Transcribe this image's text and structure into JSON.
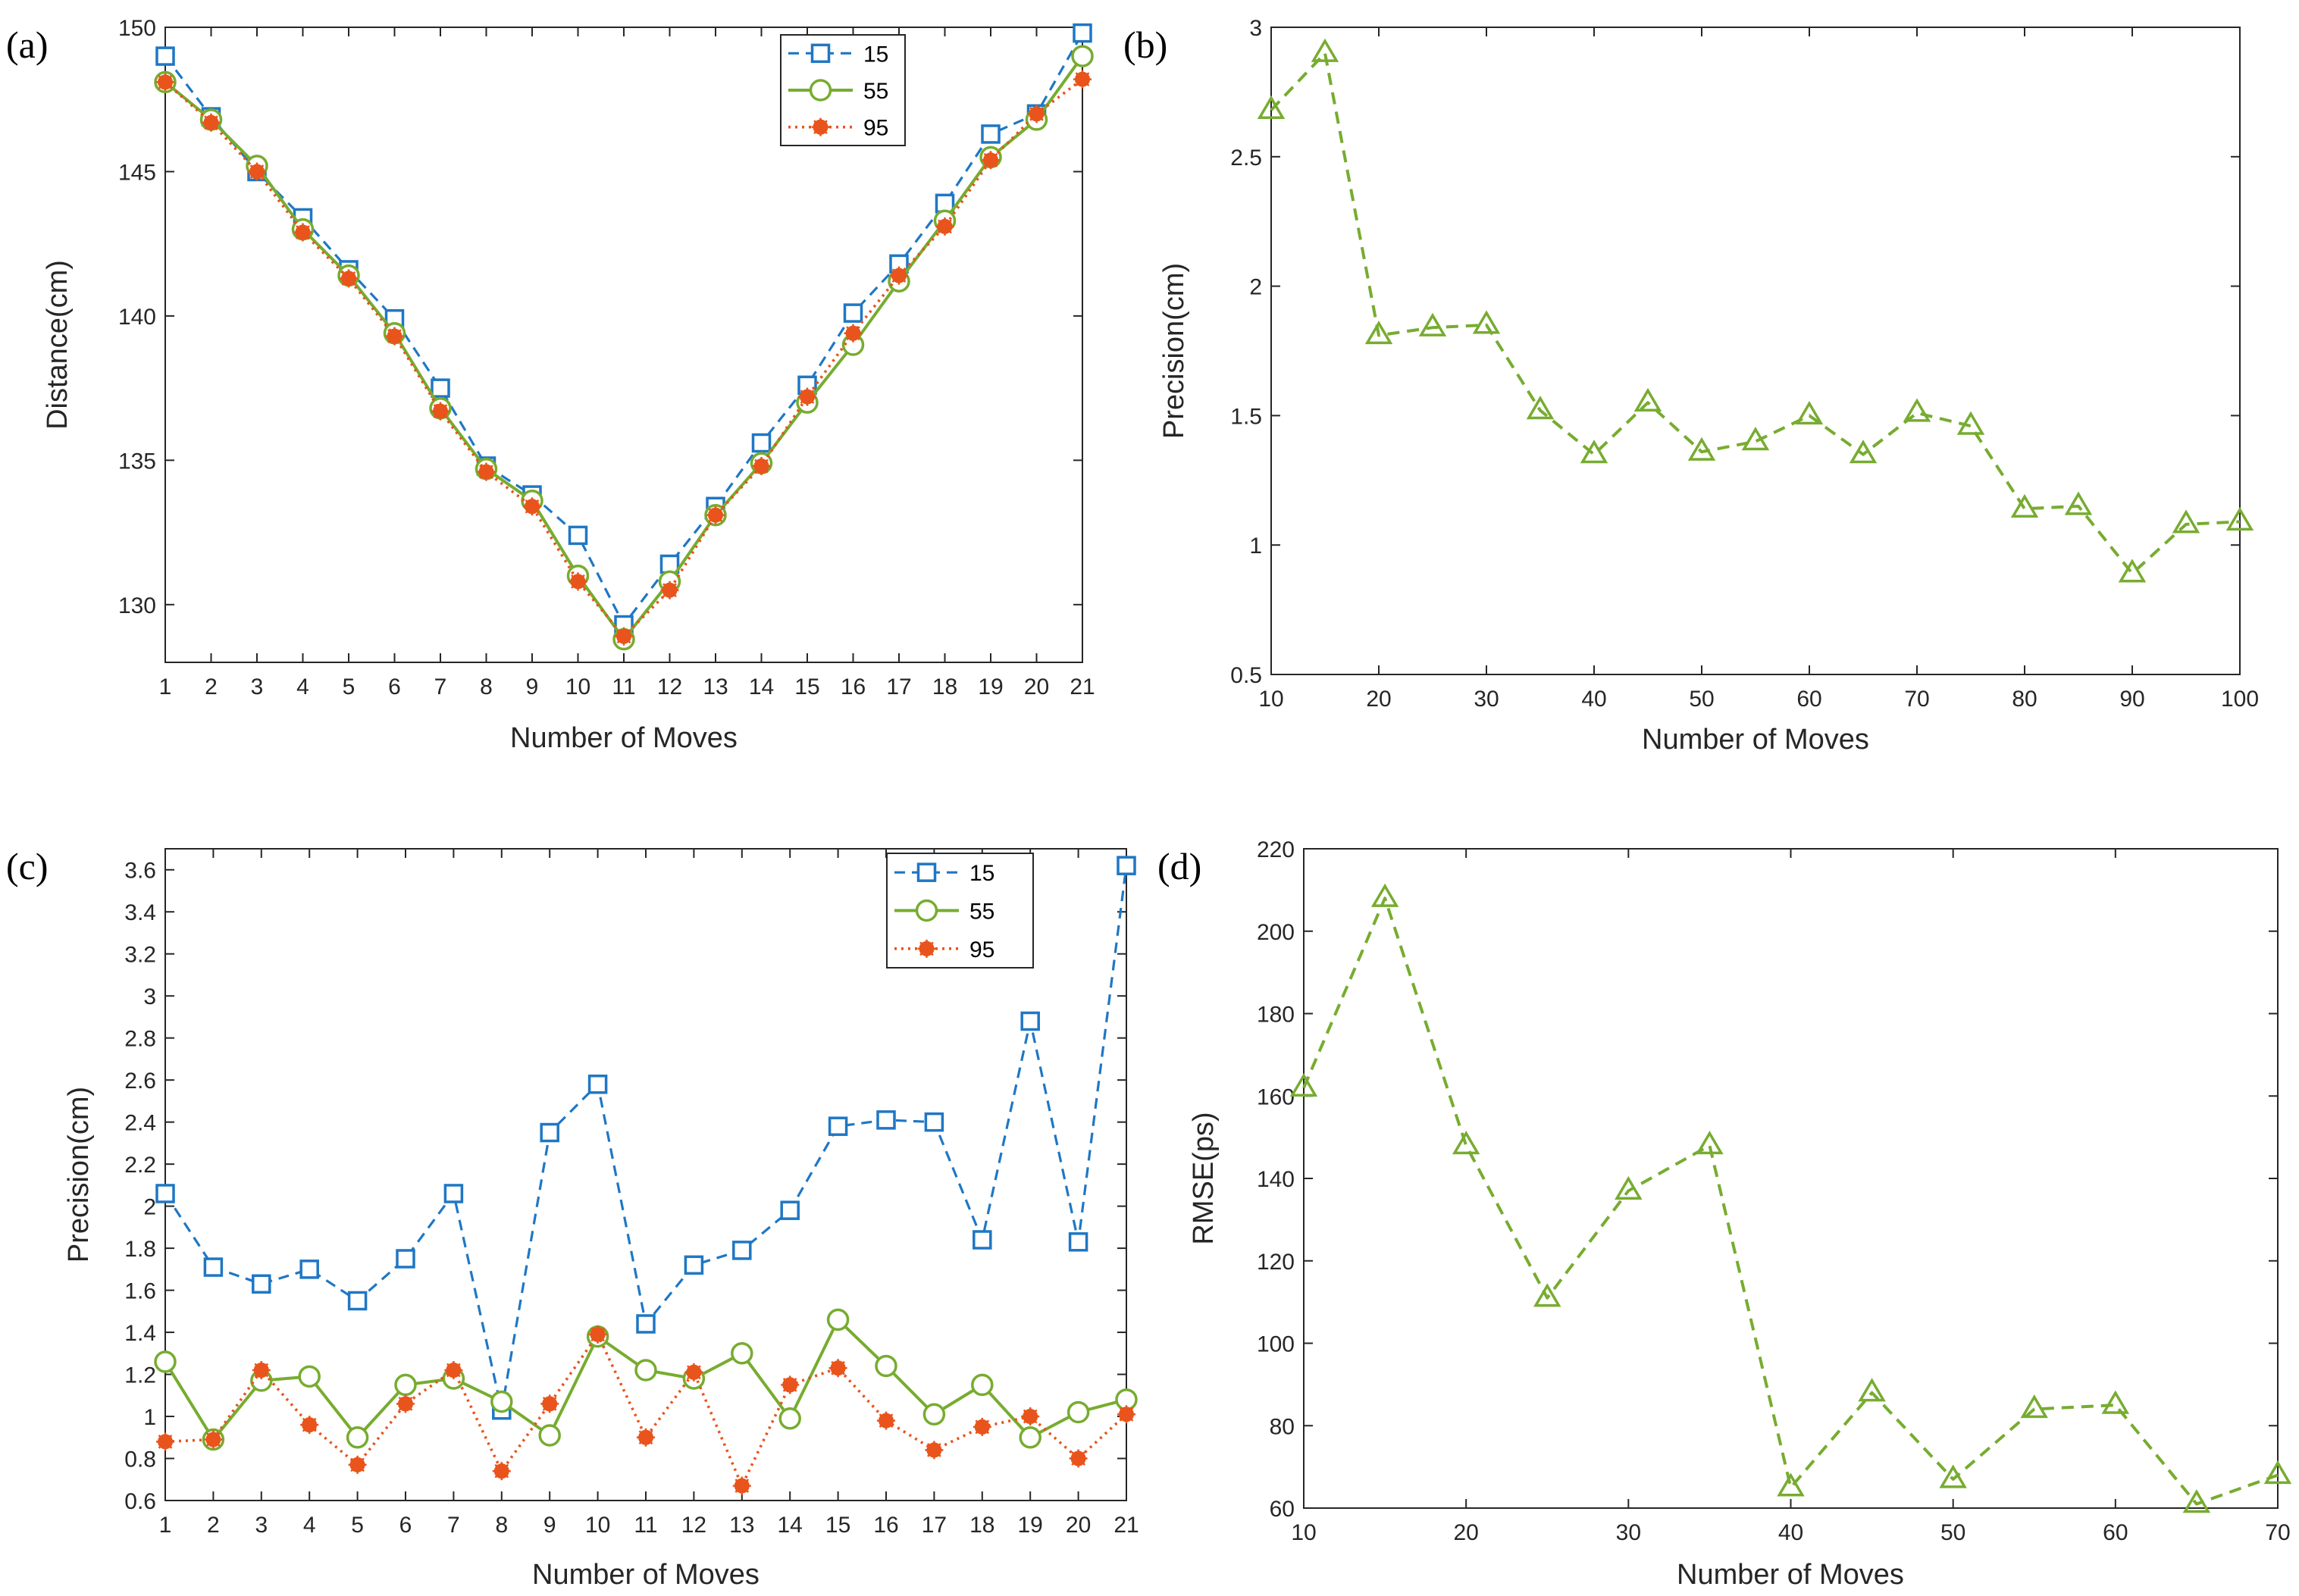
{
  "chart_data": [
    {
      "panel_label": "(a)",
      "type": "line",
      "xlabel": "Number of Moves",
      "ylabel": "Distance(cm)",
      "xlim": [
        1,
        21
      ],
      "ylim": [
        128,
        150
      ],
      "xticks": [
        1,
        2,
        3,
        4,
        5,
        6,
        7,
        8,
        9,
        10,
        11,
        12,
        13,
        14,
        15,
        16,
        17,
        18,
        19,
        20,
        21
      ],
      "yticks": [
        130,
        135,
        140,
        145,
        150
      ],
      "legend": "top-right",
      "series": [
        {
          "name": "15",
          "style": "blue-dash-square",
          "x": [
            1,
            2,
            3,
            4,
            5,
            6,
            7,
            8,
            9,
            10,
            11,
            12,
            13,
            14,
            15,
            16,
            17,
            18,
            19,
            20,
            21
          ],
          "values": [
            149.0,
            146.9,
            145.0,
            143.4,
            141.6,
            139.9,
            137.5,
            134.8,
            133.8,
            132.4,
            129.3,
            131.4,
            133.4,
            135.6,
            137.6,
            140.1,
            141.8,
            143.9,
            146.3,
            147.0,
            149.8
          ]
        },
        {
          "name": "55",
          "style": "green-solid-circle",
          "x": [
            1,
            2,
            3,
            4,
            5,
            6,
            7,
            8,
            9,
            10,
            11,
            12,
            13,
            14,
            15,
            16,
            17,
            18,
            19,
            20,
            21
          ],
          "values": [
            148.1,
            146.8,
            145.2,
            143.0,
            141.4,
            139.4,
            136.8,
            134.7,
            133.6,
            131.0,
            128.8,
            130.8,
            133.1,
            134.9,
            137.0,
            139.0,
            141.2,
            143.3,
            145.5,
            146.8,
            149.0
          ]
        },
        {
          "name": "95",
          "style": "orange-dot-star",
          "x": [
            1,
            2,
            3,
            4,
            5,
            6,
            7,
            8,
            9,
            10,
            11,
            12,
            13,
            14,
            15,
            16,
            17,
            18,
            19,
            20,
            21
          ],
          "values": [
            148.1,
            146.7,
            145.0,
            142.9,
            141.3,
            139.3,
            136.7,
            134.6,
            133.4,
            130.8,
            128.9,
            130.5,
            133.1,
            134.8,
            137.2,
            139.4,
            141.4,
            143.1,
            145.4,
            147.0,
            148.2
          ]
        }
      ]
    },
    {
      "panel_label": "(b)",
      "type": "line",
      "xlabel": "Number of Moves",
      "ylabel": "Precision(cm)",
      "xlim": [
        10,
        100
      ],
      "ylim": [
        0.5,
        3
      ],
      "xticks": [
        10,
        20,
        30,
        40,
        50,
        60,
        70,
        80,
        90,
        100
      ],
      "yticks": [
        0.5,
        1,
        1.5,
        2,
        2.5,
        3
      ],
      "series": [
        {
          "name": "precision",
          "style": "green-dash-triangle",
          "x": [
            10,
            15,
            20,
            25,
            30,
            35,
            40,
            45,
            50,
            55,
            60,
            65,
            70,
            75,
            80,
            85,
            90,
            95,
            100
          ],
          "values": [
            2.68,
            2.9,
            1.81,
            1.84,
            1.85,
            1.52,
            1.35,
            1.55,
            1.36,
            1.4,
            1.5,
            1.35,
            1.51,
            1.46,
            1.14,
            1.15,
            0.89,
            1.08,
            1.09
          ]
        }
      ]
    },
    {
      "panel_label": "(c)",
      "type": "line",
      "xlabel": "Number of Moves",
      "ylabel": "Precision(cm)",
      "xlim": [
        1,
        21
      ],
      "ylim": [
        0.6,
        3.7
      ],
      "xticks": [
        1,
        2,
        3,
        4,
        5,
        6,
        7,
        8,
        9,
        10,
        11,
        12,
        13,
        14,
        15,
        16,
        17,
        18,
        19,
        20,
        21
      ],
      "yticks": [
        0.6,
        0.8,
        1,
        1.2,
        1.4,
        1.6,
        1.8,
        2,
        2.2,
        2.4,
        2.6,
        2.8,
        3,
        3.2,
        3.4,
        3.6
      ],
      "legend": "top-right",
      "series": [
        {
          "name": "15",
          "style": "blue-dash-square",
          "x": [
            1,
            2,
            3,
            4,
            5,
            6,
            7,
            8,
            9,
            10,
            11,
            12,
            13,
            14,
            15,
            16,
            17,
            18,
            19,
            20,
            21
          ],
          "values": [
            2.06,
            1.71,
            1.63,
            1.7,
            1.55,
            1.75,
            2.06,
            1.03,
            2.35,
            2.58,
            1.44,
            1.72,
            1.79,
            1.98,
            2.38,
            2.41,
            2.4,
            1.84,
            2.88,
            1.83,
            3.62
          ]
        },
        {
          "name": "55",
          "style": "green-solid-circle",
          "x": [
            1,
            2,
            3,
            4,
            5,
            6,
            7,
            8,
            9,
            10,
            11,
            12,
            13,
            14,
            15,
            16,
            17,
            18,
            19,
            20,
            21
          ],
          "values": [
            1.26,
            0.89,
            1.17,
            1.19,
            0.9,
            1.15,
            1.18,
            1.07,
            0.91,
            1.38,
            1.22,
            1.18,
            1.3,
            0.99,
            1.46,
            1.24,
            1.01,
            1.15,
            0.9,
            1.02,
            1.08
          ]
        },
        {
          "name": "95",
          "style": "orange-dot-star",
          "x": [
            1,
            2,
            3,
            4,
            5,
            6,
            7,
            8,
            9,
            10,
            11,
            12,
            13,
            14,
            15,
            16,
            17,
            18,
            19,
            20,
            21
          ],
          "values": [
            0.88,
            0.89,
            1.22,
            0.96,
            0.77,
            1.06,
            1.22,
            0.74,
            1.06,
            1.39,
            0.9,
            1.21,
            0.67,
            1.15,
            1.23,
            0.98,
            0.84,
            0.95,
            1.0,
            0.8,
            1.01
          ]
        }
      ]
    },
    {
      "panel_label": "(d)",
      "type": "line",
      "xlabel": "Number of Moves",
      "ylabel": "RMSE(ps)",
      "xlim": [
        10,
        70
      ],
      "ylim": [
        60,
        220
      ],
      "xticks": [
        10,
        20,
        30,
        40,
        50,
        60,
        70
      ],
      "yticks": [
        60,
        80,
        100,
        120,
        140,
        160,
        180,
        200,
        220
      ],
      "series": [
        {
          "name": "rmse",
          "style": "green-dash-triangle",
          "x": [
            10,
            15,
            20,
            25,
            30,
            35,
            40,
            45,
            50,
            55,
            60,
            65,
            70
          ],
          "values": [
            162,
            208,
            148,
            111,
            137,
            148,
            65,
            88,
            67,
            84,
            85,
            61,
            68
          ]
        }
      ]
    }
  ]
}
